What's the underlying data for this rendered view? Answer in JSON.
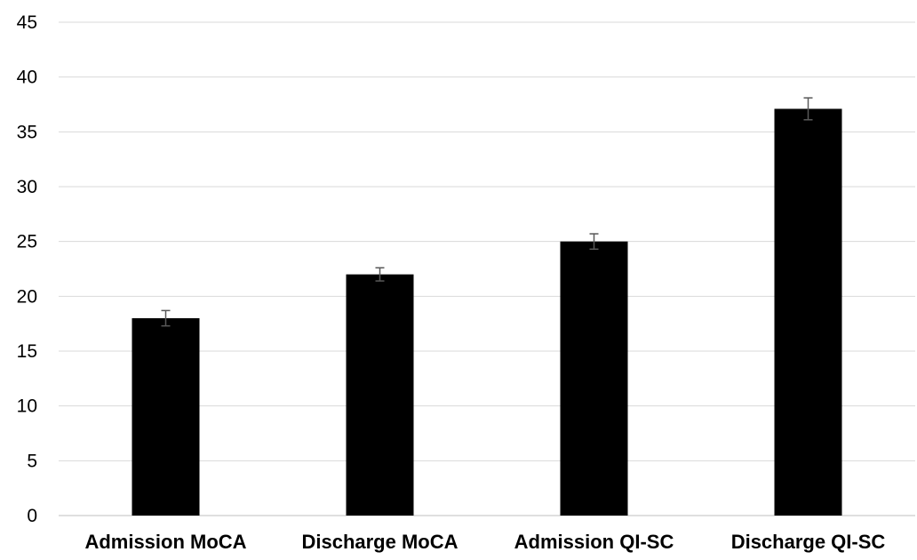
{
  "chart_data": {
    "type": "bar",
    "title": "",
    "xlabel": "",
    "ylabel": "",
    "categories": [
      "Admission MoCA",
      "Discharge MoCA",
      "Admission QI-SC",
      "Discharge QI-SC"
    ],
    "values": [
      18,
      22,
      25,
      37.1
    ],
    "error_bars": [
      0.7,
      0.6,
      0.7,
      1.0
    ],
    "ylim": [
      0,
      45
    ],
    "yticks": [
      "0",
      "5",
      "10",
      "15",
      "20",
      "25",
      "30",
      "35",
      "40",
      "45"
    ],
    "grid": "horizontal",
    "legend": "none",
    "colors": {
      "bar": "#000000",
      "gridline": "#d9d9d9",
      "error_bar": "#595959"
    }
  }
}
